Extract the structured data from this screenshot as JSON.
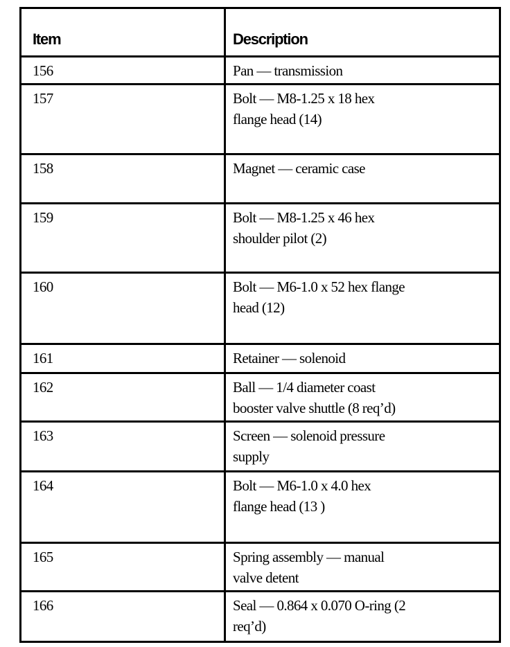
{
  "table": {
    "headers": {
      "item": "Item",
      "description": "Description"
    },
    "rows": [
      {
        "item": "156",
        "lines": [
          "Pan — transmission"
        ]
      },
      {
        "item": "157",
        "lines": [
          "Bolt — M8-1.25 x 18 hex",
          "flange head (14)"
        ]
      },
      {
        "item": "158",
        "lines": [
          "Magnet — ceramic case"
        ]
      },
      {
        "item": "159",
        "lines": [
          "Bolt — M8-1.25 x 46 hex",
          "shoulder pilot (2)"
        ]
      },
      {
        "item": "160",
        "lines": [
          "Bolt — M6-1.0 x 52 hex flange",
          "head (12)"
        ]
      },
      {
        "item": "161",
        "lines": [
          "Retainer — solenoid"
        ]
      },
      {
        "item": "162",
        "lines": [
          "Ball — 1/4 diameter coast",
          "booster valve shuttle (8 req’d)"
        ]
      },
      {
        "item": "163",
        "lines": [
          "Screen — solenoid pressure",
          "supply"
        ]
      },
      {
        "item": "164",
        "lines": [
          "Bolt — M6-1.0 x 4.0 hex",
          "flange head (13 )"
        ]
      },
      {
        "item": "165",
        "lines": [
          "Spring assembly — manual",
          "valve detent"
        ]
      },
      {
        "item": "166",
        "lines": [
          "Seal — 0.864 x 0.070 O-ring (2",
          "req’d)"
        ]
      }
    ]
  }
}
